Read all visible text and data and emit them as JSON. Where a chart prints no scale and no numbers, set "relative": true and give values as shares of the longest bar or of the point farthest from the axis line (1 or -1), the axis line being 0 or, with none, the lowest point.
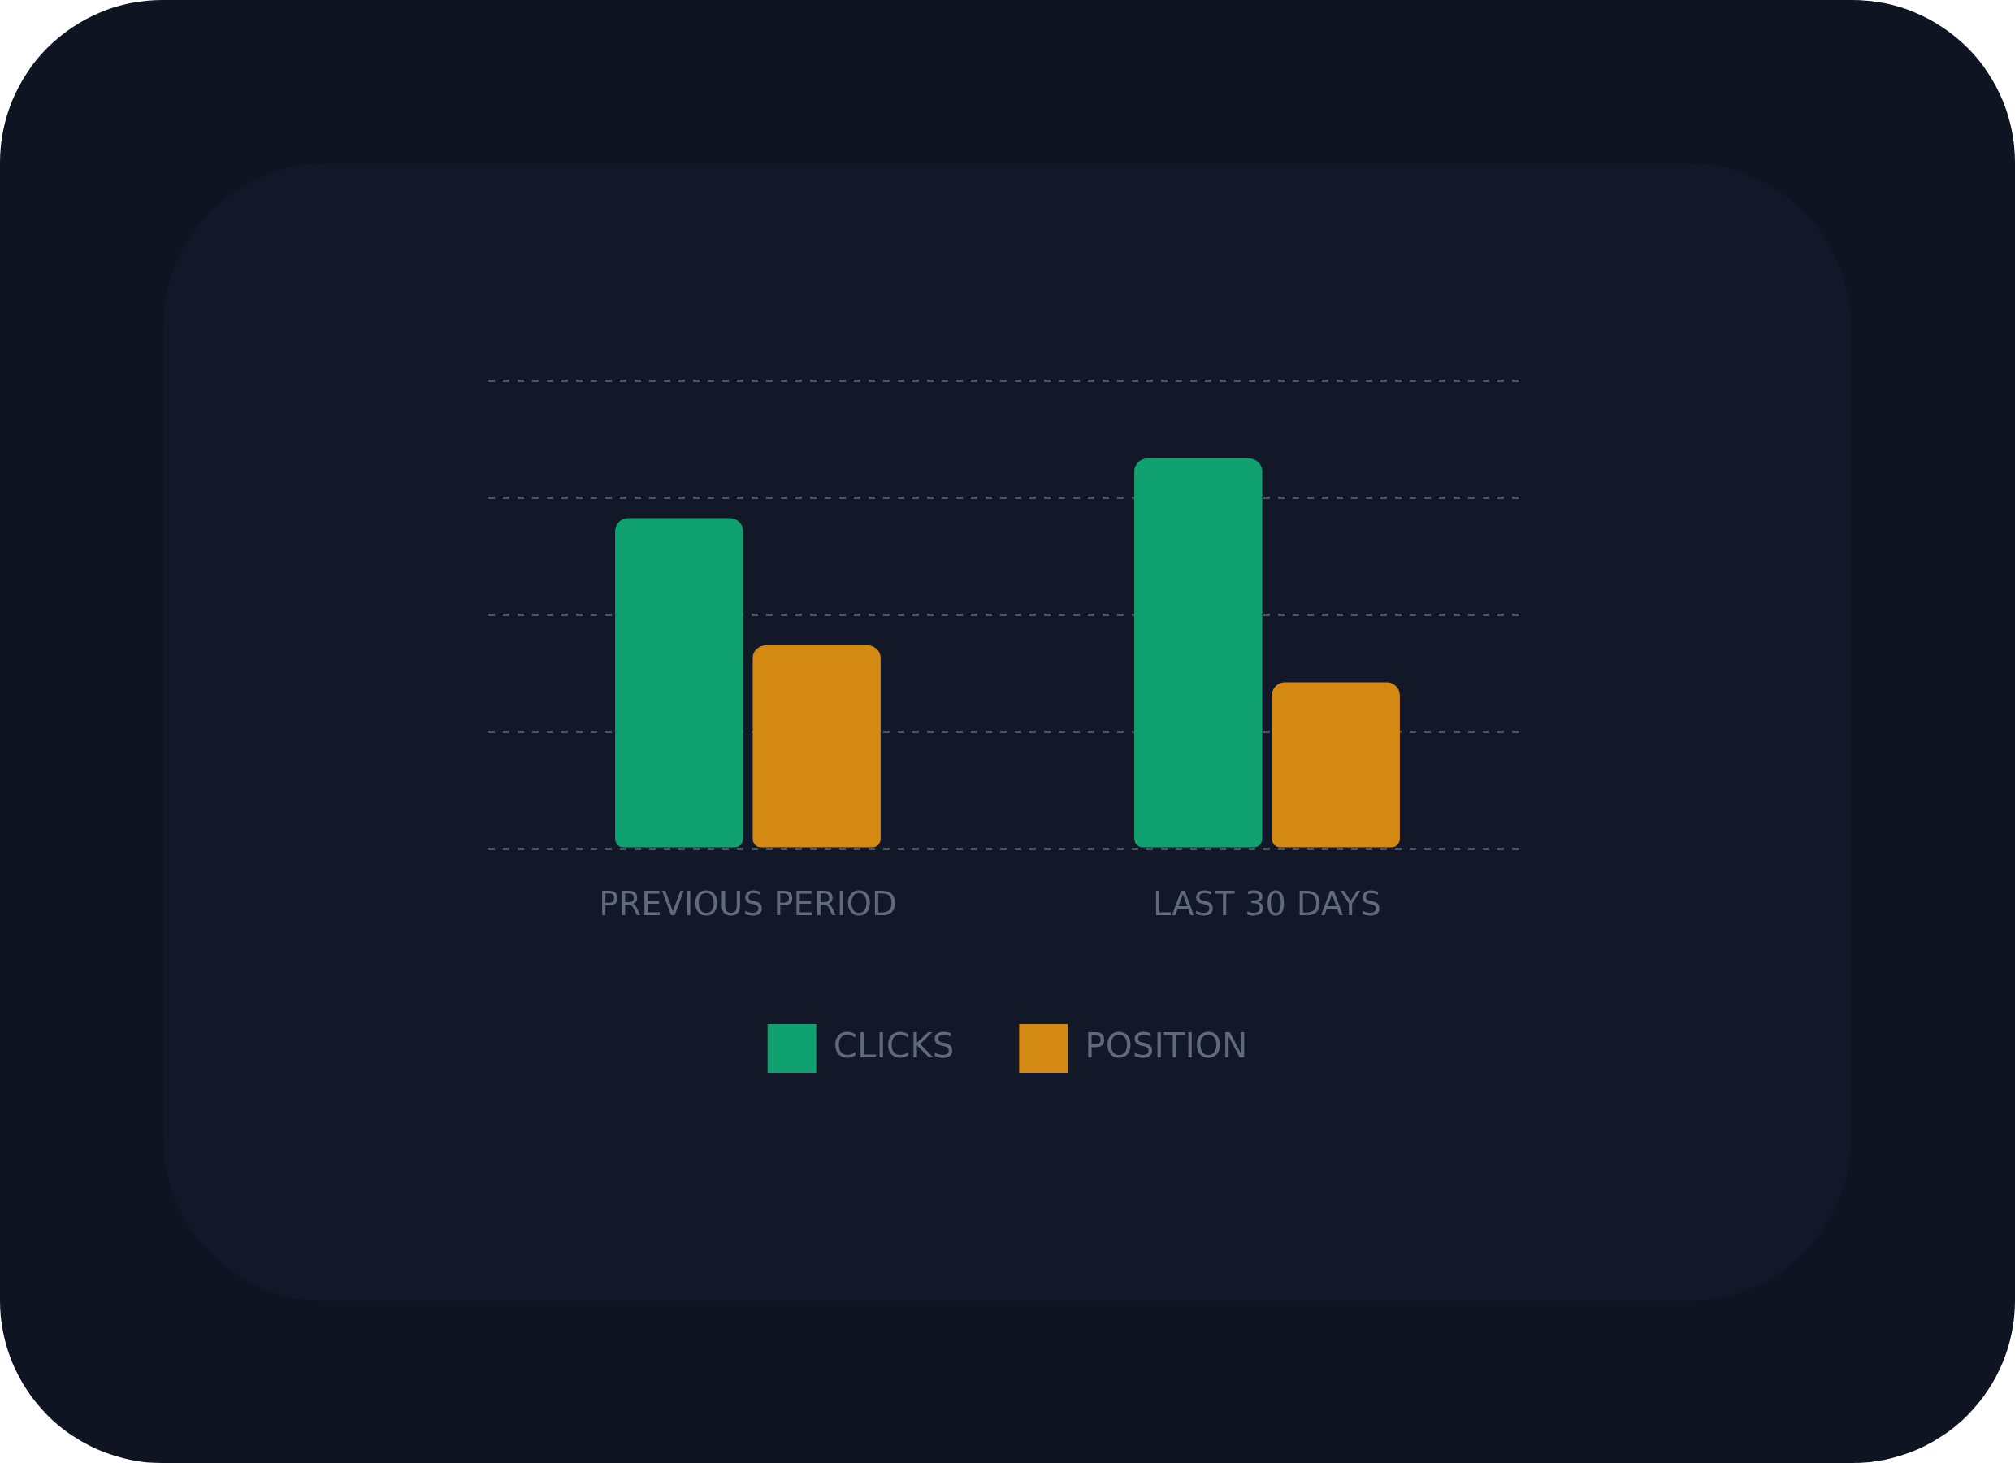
{
  "chart_data": {
    "type": "bar",
    "relative": true,
    "categories": [
      "PREVIOUS PERIOD",
      "LAST 30 DAYS"
    ],
    "series": [
      {
        "name": "CLICKS",
        "color": "#10a170",
        "values": [
          0.847,
          1
        ]
      },
      {
        "name": "POSITION",
        "color": "#d48a12",
        "values": [
          0.521,
          0.426
        ]
      }
    ],
    "grid": "y",
    "legend": "bottom"
  }
}
